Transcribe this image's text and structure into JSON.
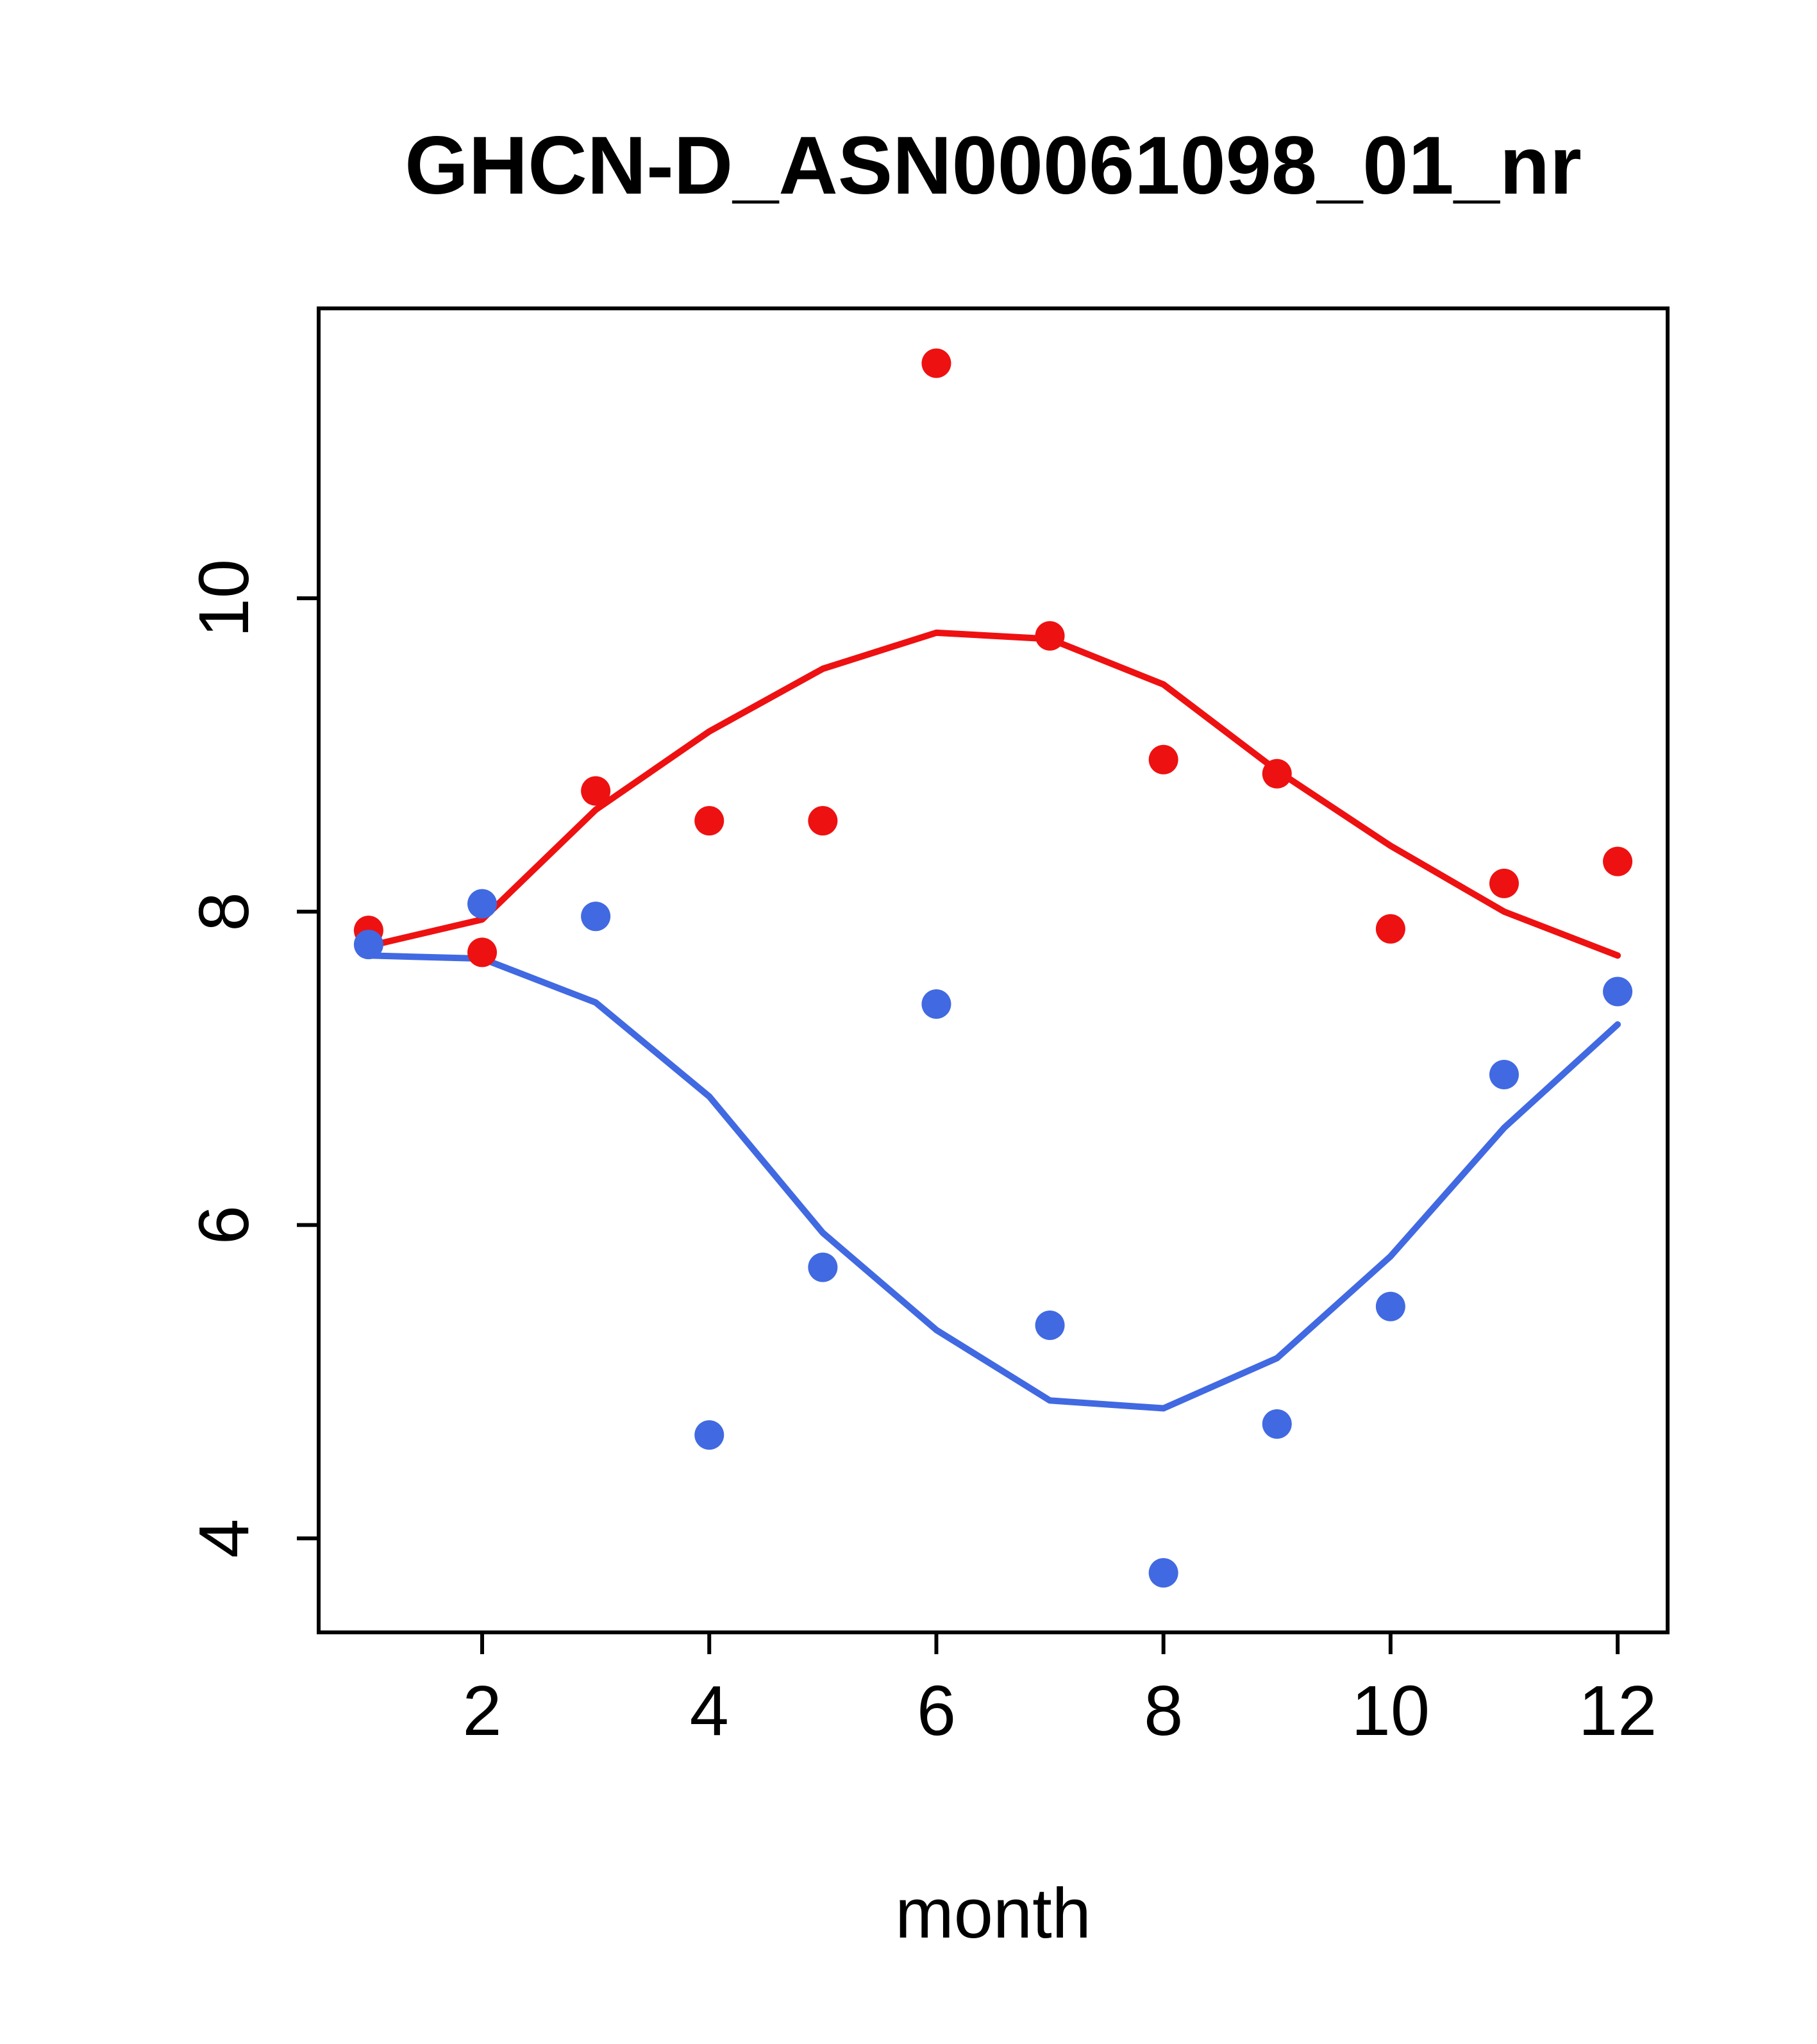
{
  "page": {
    "background": "#ffffff",
    "axis_color": "#000000"
  },
  "chart_data": {
    "type": "scatter",
    "title": "GHCN-D_ASN00061098_01_nr",
    "xlabel": "month",
    "ylabel": "",
    "xlim": [
      0.56,
      12.44
    ],
    "ylim": [
      3.4,
      11.85
    ],
    "xticks": [
      2,
      4,
      6,
      8,
      10,
      12
    ],
    "yticks": [
      4,
      6,
      8,
      10
    ],
    "grid": false,
    "legend": "none",
    "x": [
      1,
      2,
      3,
      4,
      5,
      6,
      7,
      8,
      9,
      10,
      11,
      12
    ],
    "series": [
      {
        "name": "red-points",
        "kind": "points",
        "color": "#ee1111",
        "values": [
          7.88,
          7.74,
          8.77,
          8.58,
          8.58,
          11.5,
          9.76,
          8.97,
          8.88,
          7.89,
          8.18,
          8.32
        ]
      },
      {
        "name": "red-trend-line",
        "kind": "line",
        "color": "#ee1111",
        "values": [
          7.78,
          7.95,
          8.65,
          9.15,
          9.55,
          9.78,
          9.74,
          9.45,
          8.9,
          8.42,
          8.0,
          7.72
        ]
      },
      {
        "name": "blue-points",
        "kind": "points",
        "color": "#4169e1",
        "values": [
          7.79,
          8.05,
          7.97,
          4.66,
          5.73,
          7.41,
          5.36,
          3.78,
          4.73,
          5.48,
          6.96,
          7.49
        ]
      },
      {
        "name": "blue-trend-line",
        "kind": "line",
        "color": "#4169e1",
        "values": [
          7.72,
          7.7,
          7.42,
          6.82,
          5.95,
          5.33,
          4.88,
          4.83,
          5.15,
          5.8,
          6.62,
          7.28
        ]
      }
    ]
  }
}
